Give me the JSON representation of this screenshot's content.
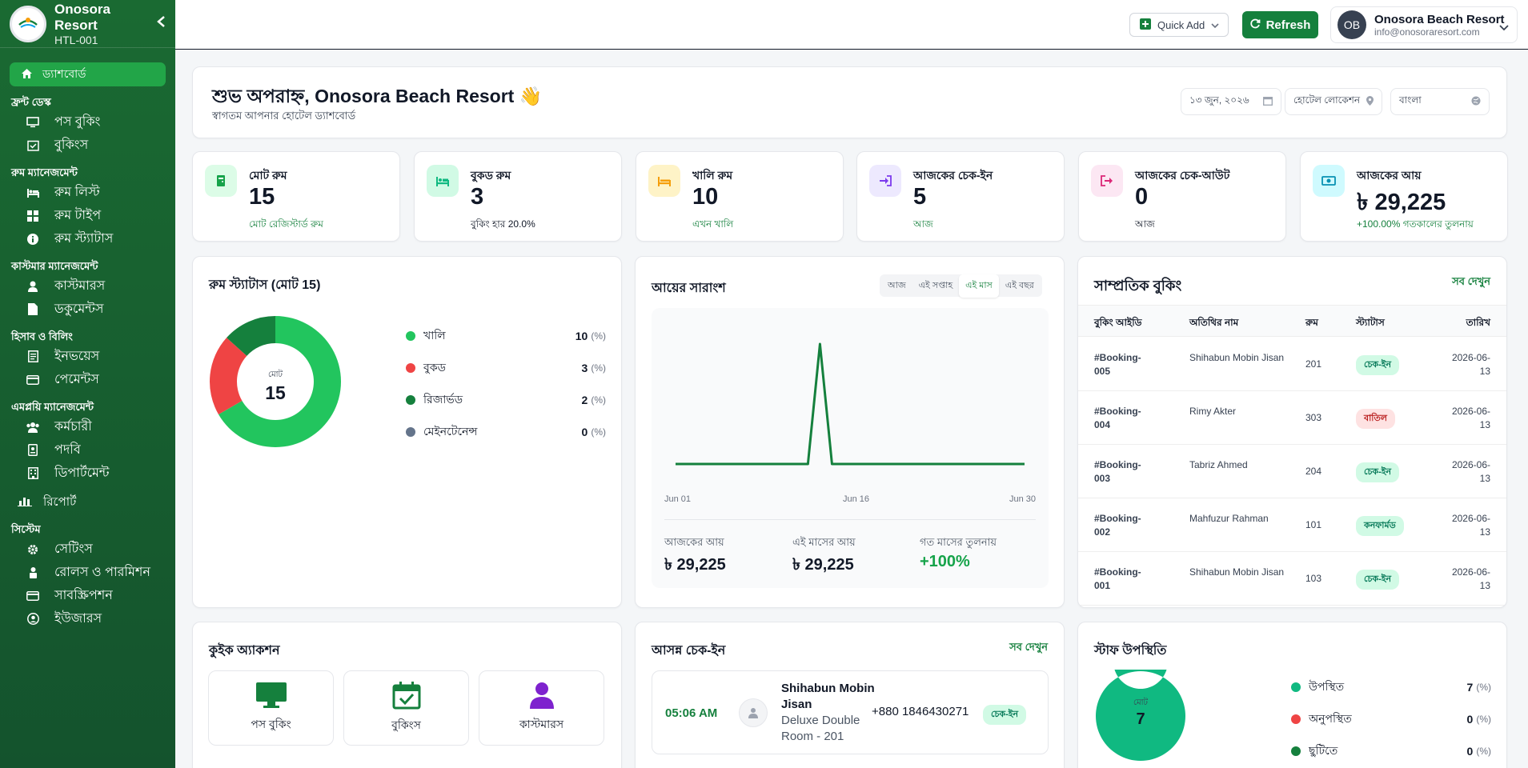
{
  "sidebar": {
    "hotel_name": "Onosora Resort",
    "hotel_code": "HTL-001",
    "collapse_icon": "chevron-left-icon",
    "dashboard": "ড্যাশবোর্ড",
    "sections": [
      {
        "title": "ফ্রন্ট ডেস্ক",
        "items": [
          "পস বুকিং",
          "বুকিংস"
        ]
      },
      {
        "title": "রুম ম্যানেজমেন্ট",
        "items": [
          "রুম লিস্ট",
          "রুম টাইপ",
          "রুম স্ট্যাটাস"
        ]
      },
      {
        "title": "কাস্টমার ম্যানেজমেন্ট",
        "items": [
          "কাস্টমারস",
          "ডকুমেন্টস"
        ]
      },
      {
        "title": "হিসাব ও বিলিং",
        "items": [
          "ইনভয়েস",
          "পেমেন্টস"
        ]
      },
      {
        "title": "এমপ্লয়ি ম্যানেজমেন্ট",
        "items": [
          "কর্মচারী",
          "পদবি",
          "ডিপার্টমেন্ট"
        ]
      }
    ],
    "report": "রিপোর্ট",
    "system_title": "সিস্টেম",
    "system_items": [
      "সেটিংস",
      "রোলস ও পারমিশন",
      "সাবস্ক্রিপশন",
      "ইউজারস"
    ]
  },
  "topbar": {
    "quick_add": "Quick Add",
    "refresh": "Refresh",
    "avatar_initials": "OB",
    "profile_name": "Onosora Beach Resort",
    "profile_email": "info@onosoraresort.com"
  },
  "greeting": {
    "title": "শুভ অপরাহ্ন, Onosora Beach Resort 👋",
    "subtitle": "স্বাগতম আপনার হোটেল ড্যাশবোর্ড",
    "date": "১৩ জুন, ২০২৬",
    "location": "হোটেল লোকেশন",
    "language": "বাংলা"
  },
  "stats": [
    {
      "label": "মোট রুম",
      "value": "15",
      "sub": "মোট রেজিস্টার্ড রুম",
      "color": "#16a34a",
      "bg": "#dcfce7",
      "icon": "door-icon"
    },
    {
      "label": "বুকড রুম",
      "value": "3",
      "sub": "বুকিং হার 20.0%",
      "color": "#10b981",
      "bg": "#d1fae5",
      "icon": "bed-icon"
    },
    {
      "label": "খালি রুম",
      "value": "10",
      "sub": "এখন খালি",
      "color": "#f59e0b",
      "bg": "#fef3c7",
      "icon": "bed-empty-icon"
    },
    {
      "label": "আজকের চেক-ইন",
      "value": "5",
      "sub": "আজ",
      "color": "#7c3aed",
      "bg": "#ede9fe",
      "icon": "sign-in-icon"
    },
    {
      "label": "আজকের চেক-আউট",
      "value": "0",
      "sub": "আজ",
      "color": "#db2777",
      "bg": "#fce7f3",
      "icon": "sign-out-icon"
    },
    {
      "label": "আজকের আয়",
      "value": "৳ 29,225",
      "sub": "+100.00% গতকালের তুলনায়",
      "color": "#0891b2",
      "bg": "#cffafe",
      "icon": "money-icon"
    }
  ],
  "room_status": {
    "title": "রুম স্ট্যাটাস (মোট 15)",
    "center_label": "মোট",
    "center_value": "15",
    "legend": [
      {
        "label": "খালি",
        "value": "10",
        "pct": "(%)",
        "color": "#22c55e"
      },
      {
        "label": "বুকড",
        "value": "3",
        "pct": "(%)",
        "color": "#ef4444"
      },
      {
        "label": "রিজার্ভড",
        "value": "2",
        "pct": "(%)",
        "color": "#15803d"
      },
      {
        "label": "মেইনটেনেন্স",
        "value": "0",
        "pct": "(%)",
        "color": "#64748b"
      }
    ]
  },
  "income": {
    "title": "আয়ের সারাংশ",
    "tabs": [
      "আজ",
      "এই সপ্তাহ",
      "এই মাস",
      "এই বছর"
    ],
    "active_tab": "এই মাস",
    "today_label": "আজকের আয়",
    "today_value": "৳ 29,225",
    "month_label": "এই মাসের আয়",
    "month_value": "৳ 29,225",
    "compare_label": "গত মাসের তুলনায়",
    "compare_value": "+100%"
  },
  "chart_data": {
    "type": "line",
    "x": [
      "Jun 01",
      "Jun 02",
      "Jun 03",
      "Jun 04",
      "Jun 05",
      "Jun 06",
      "Jun 07",
      "Jun 08",
      "Jun 09",
      "Jun 10",
      "Jun 11",
      "Jun 12",
      "Jun 13",
      "Jun 14",
      "Jun 15",
      "Jun 16",
      "Jun 17",
      "Jun 18",
      "Jun 19",
      "Jun 20",
      "Jun 21",
      "Jun 22",
      "Jun 23",
      "Jun 24",
      "Jun 25",
      "Jun 26",
      "Jun 27",
      "Jun 28",
      "Jun 29",
      "Jun 30"
    ],
    "series": [
      {
        "values": [
          0,
          0,
          0,
          0,
          0,
          0,
          0,
          0,
          0,
          0,
          0,
          0,
          29225,
          0,
          0,
          0,
          0,
          0,
          0,
          0,
          0,
          0,
          0,
          0,
          0,
          0,
          0,
          0,
          0,
          0
        ]
      }
    ],
    "xticks": [
      "Jun 01",
      "Jun 16",
      "Jun 30"
    ],
    "color": "#15803d",
    "grid": false
  },
  "recent_bookings": {
    "title": "সাম্প্রতিক বুকিং",
    "view_all": "সব দেখুন",
    "columns": [
      "বুকিং আইডি",
      "অতিথির নাম",
      "রুম",
      "স্ট্যাটাস",
      "তারিখ"
    ],
    "rows": [
      {
        "id1": "#Booking-",
        "id2": "005",
        "name": "Shihabun Mobin Jisan",
        "room": "201",
        "status": "চেক-ইন",
        "type": "green",
        "d1": "2026-06-",
        "d2": "13"
      },
      {
        "id1": "#Booking-",
        "id2": "004",
        "name": "Rimy Akter",
        "room": "303",
        "status": "বাতিল",
        "type": "red",
        "d1": "2026-06-",
        "d2": "13"
      },
      {
        "id1": "#Booking-",
        "id2": "003",
        "name": "Tabriz Ahmed",
        "room": "204",
        "status": "চেক-ইন",
        "type": "green",
        "d1": "2026-06-",
        "d2": "13"
      },
      {
        "id1": "#Booking-",
        "id2": "002",
        "name": "Mahfuzur Rahman",
        "room": "101",
        "status": "কনফার্মড",
        "type": "green",
        "d1": "2026-06-",
        "d2": "13"
      },
      {
        "id1": "#Booking-",
        "id2": "001",
        "name": "Shihabun Mobin Jisan",
        "room": "103",
        "status": "চেক-ইন",
        "type": "green",
        "d1": "2026-06-",
        "d2": "13"
      }
    ]
  },
  "quick_actions": {
    "title": "কুইক অ্যাকশন",
    "items": [
      {
        "label": "পস বুকিং",
        "icon": "monitor-icon"
      },
      {
        "label": "বুকিংস",
        "icon": "calendar-check-icon"
      },
      {
        "label": "কাস্টমারস",
        "icon": "user-icon"
      }
    ]
  },
  "upcoming_checkin": {
    "title": "আসন্ন চেক-ইন",
    "view_all": "সব দেখুন",
    "time": "05:06 AM",
    "name1": "Shihabun Mobin",
    "name2": "Jisan",
    "room1": "Deluxe Double",
    "room2": "Room - 201",
    "phone": "+880 1846430271",
    "status": "চেক-ইন"
  },
  "staff_attendance": {
    "title": "স্টাফ উপস্থিতি",
    "center_label": "মোট",
    "center_value": "7",
    "legend": [
      {
        "label": "উপস্থিত",
        "value": "7",
        "pct": "(%)",
        "color": "#10b981"
      },
      {
        "label": "অনুপস্থিত",
        "value": "0",
        "pct": "(%)",
        "color": "#ef4444"
      },
      {
        "label": "ছুটিতে",
        "value": "0",
        "pct": "(%)",
        "color": "#15803d"
      }
    ]
  }
}
